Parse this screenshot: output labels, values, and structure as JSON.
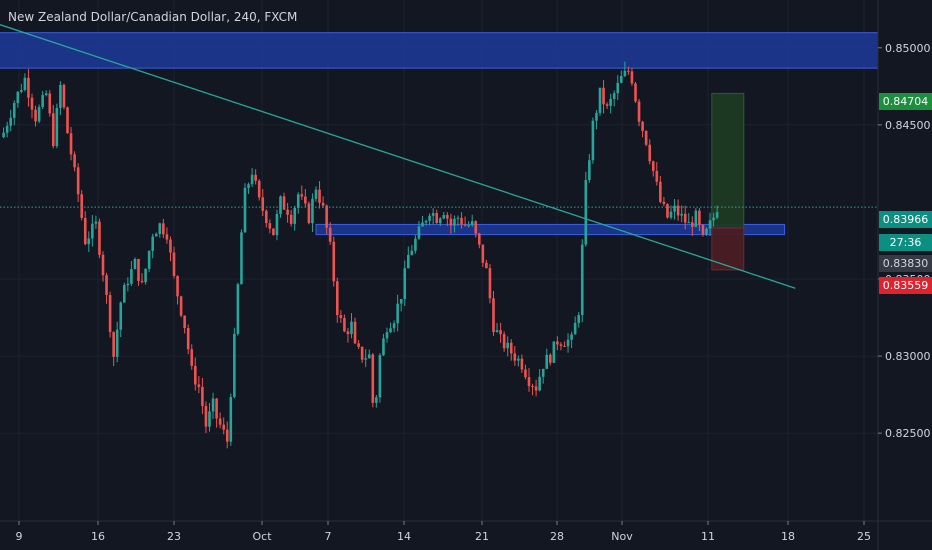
{
  "window": {
    "title": "New Zealand Dollar/Canadian Dollar, 240, FXCM"
  },
  "colors": {
    "background": "#131722",
    "grid": "#1e222d",
    "axis_text": "#d1d4dc",
    "up": "#26a69a",
    "down": "#ef5350",
    "trendline": "#26a69a",
    "zone_fill": "#1e3a9a",
    "zone_border": "#3a5ee0",
    "target_fill": "#1c3a24",
    "stop_fill": "#4a1c24"
  },
  "chart_data": {
    "type": "candlestick",
    "title": "New Zealand Dollar/Canadian Dollar, 240, FXCM",
    "x_ticks": [
      "9",
      "16",
      "23",
      "Oct",
      "7",
      "14",
      "21",
      "28",
      "Nov",
      "11",
      "18",
      "25"
    ],
    "y_ticks": [
      "0.85000",
      "0.84500",
      "0.83500",
      "0.83000",
      "0.82500"
    ],
    "ylim": [
      0.8193,
      0.8531
    ],
    "price_labels": {
      "target": "0.84704",
      "last": "0.83966",
      "countdown": "27:36",
      "entry": "0.83830",
      "stop": "0.83559"
    },
    "series_path_close": [
      [
        0,
        0.8445
      ],
      [
        3,
        0.8465
      ],
      [
        6,
        0.848
      ],
      [
        9,
        0.8455
      ],
      [
        12,
        0.847
      ],
      [
        14,
        0.844
      ],
      [
        16,
        0.8475
      ],
      [
        18,
        0.8445
      ],
      [
        21,
        0.8405
      ],
      [
        23,
        0.8375
      ],
      [
        26,
        0.8385
      ],
      [
        28,
        0.8355
      ],
      [
        30,
        0.832
      ],
      [
        31,
        0.83
      ],
      [
        33,
        0.8335
      ],
      [
        35,
        0.835
      ],
      [
        37,
        0.836
      ],
      [
        39,
        0.8345
      ],
      [
        42,
        0.838
      ],
      [
        44,
        0.8385
      ],
      [
        46,
        0.838
      ],
      [
        48,
        0.835
      ],
      [
        49,
        0.834
      ],
      [
        51,
        0.832
      ],
      [
        53,
        0.829
      ],
      [
        55,
        0.828
      ],
      [
        56,
        0.8268
      ],
      [
        57,
        0.8255
      ],
      [
        59,
        0.8268
      ],
      [
        60,
        0.826
      ],
      [
        62,
        0.825
      ],
      [
        63,
        0.8245
      ],
      [
        65,
        0.831
      ],
      [
        67,
        0.838
      ],
      [
        68,
        0.8405
      ],
      [
        70,
        0.842
      ],
      [
        72,
        0.84
      ],
      [
        73,
        0.8395
      ],
      [
        75,
        0.8385
      ],
      [
        76,
        0.838
      ],
      [
        78,
        0.84
      ],
      [
        80,
        0.8395
      ],
      [
        81,
        0.839
      ],
      [
        83,
        0.8405
      ],
      [
        85,
        0.8395
      ],
      [
        86,
        0.839
      ],
      [
        88,
        0.841
      ],
      [
        90,
        0.8395
      ],
      [
        92,
        0.837
      ],
      [
        94,
        0.833
      ],
      [
        96,
        0.8315
      ],
      [
        98,
        0.832
      ],
      [
        99,
        0.8305
      ],
      [
        101,
        0.83
      ],
      [
        103,
        0.83
      ],
      [
        104,
        0.827
      ],
      [
        105,
        0.8275
      ],
      [
        106,
        0.83
      ],
      [
        108,
        0.832
      ],
      [
        110,
        0.8325
      ],
      [
        112,
        0.834
      ],
      [
        114,
        0.8365
      ],
      [
        116,
        0.8375
      ],
      [
        118,
        0.8385
      ],
      [
        120,
        0.8395
      ],
      [
        122,
        0.839
      ],
      [
        124,
        0.8395
      ],
      [
        126,
        0.8385
      ],
      [
        128,
        0.839
      ],
      [
        130,
        0.8385
      ],
      [
        132,
        0.8385
      ],
      [
        134,
        0.837
      ],
      [
        136,
        0.8355
      ],
      [
        138,
        0.832
      ],
      [
        140,
        0.831
      ],
      [
        142,
        0.8305
      ],
      [
        144,
        0.83
      ],
      [
        146,
        0.8295
      ],
      [
        148,
        0.8285
      ],
      [
        150,
        0.828
      ],
      [
        152,
        0.8295
      ],
      [
        154,
        0.83
      ],
      [
        156,
        0.831
      ],
      [
        158,
        0.831
      ],
      [
        160,
        0.831
      ],
      [
        162,
        0.833
      ],
      [
        164,
        0.841
      ],
      [
        166,
        0.845
      ],
      [
        168,
        0.847
      ],
      [
        170,
        0.846
      ],
      [
        172,
        0.847
      ],
      [
        174,
        0.848
      ],
      [
        176,
        0.8485
      ],
      [
        177,
        0.848
      ],
      [
        179,
        0.8455
      ],
      [
        181,
        0.844
      ],
      [
        183,
        0.842
      ],
      [
        185,
        0.84
      ],
      [
        187,
        0.839
      ],
      [
        189,
        0.8395
      ],
      [
        191,
        0.839
      ],
      [
        193,
        0.8385
      ],
      [
        195,
        0.839
      ],
      [
        197,
        0.8375
      ],
      [
        199,
        0.8385
      ],
      [
        200,
        0.839
      ],
      [
        201,
        0.8397
      ]
    ],
    "trendline": {
      "start": [
        -1,
        0.8515
      ],
      "end": [
        223,
        0.8344
      ]
    },
    "resistance_zone": {
      "y_low": 0.84868,
      "y_high": 0.85098
    },
    "support_zone": {
      "x_start": 88,
      "x_end": 220,
      "y_low": 0.83788,
      "y_high": 0.83854
    },
    "position": {
      "x_start": 199.5,
      "x_end": 208.5,
      "target": 0.84704,
      "entry": 0.8383,
      "stop": 0.83559
    },
    "last_price": 0.83966
  }
}
